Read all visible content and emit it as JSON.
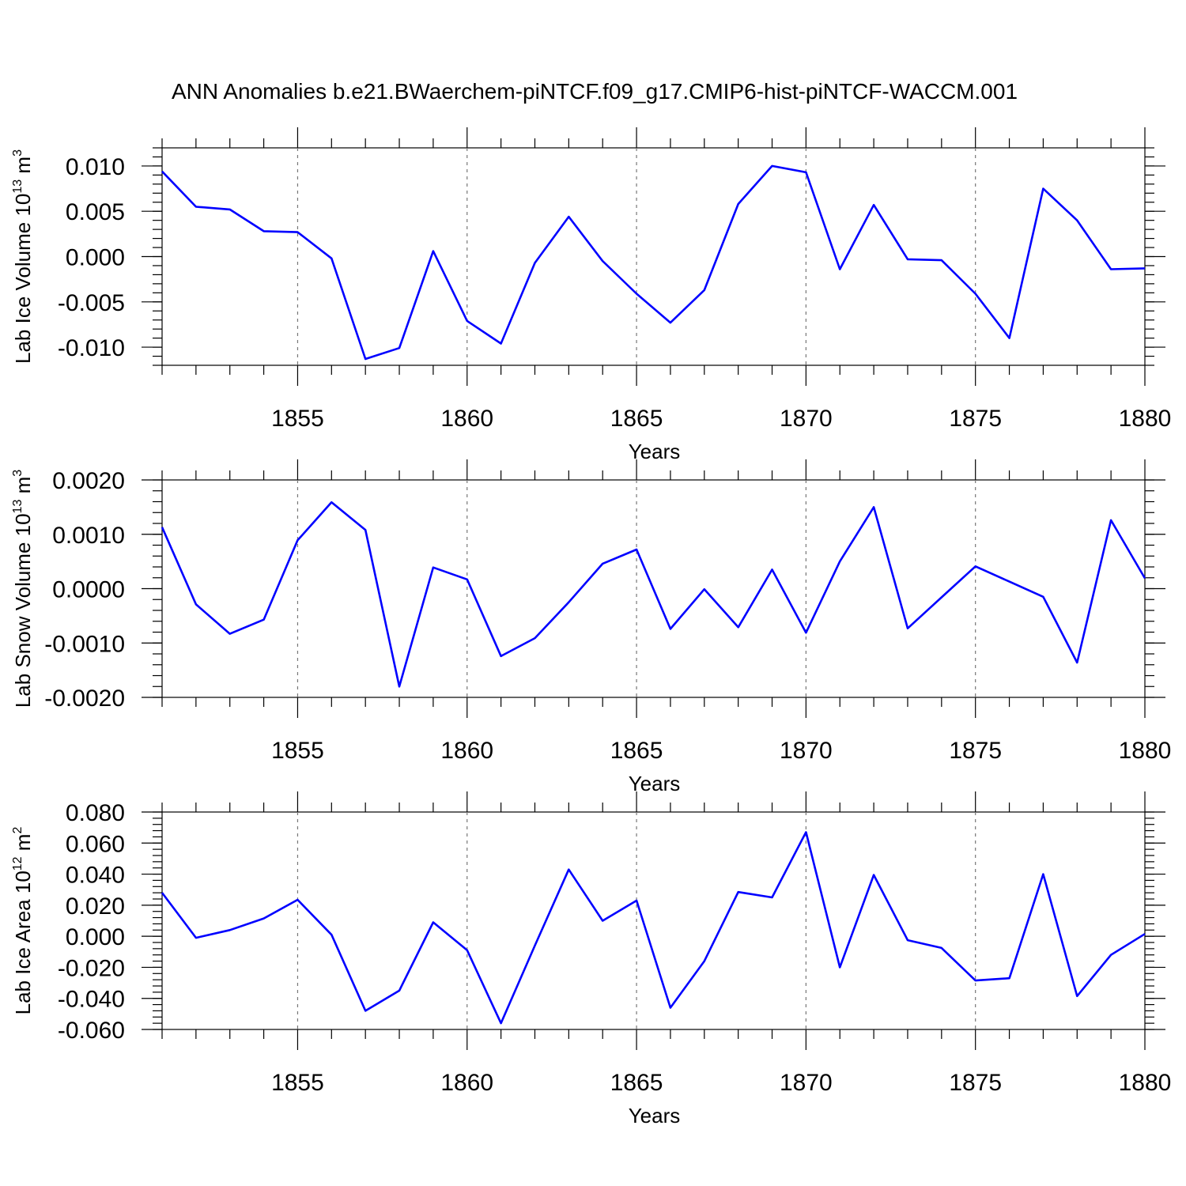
{
  "title": "ANN Anomalies b.e21.BWaerchem-piNTCF.f09_g17.CMIP6-hist-piNTCF-WACCM.001",
  "colors": {
    "line": "#0000ff",
    "grid": "#777777",
    "axis": "#000000"
  },
  "chart_data": [
    {
      "type": "line",
      "name": "ice-volume",
      "ylabel": "Lab Ice Volume 10",
      "ylabel_exp": "13",
      "ylabel_unit": " m",
      "ylabel_unit_exp": "3",
      "xlabel": "Years",
      "xlim": [
        1851,
        1880
      ],
      "ylim": [
        -0.012,
        0.012
      ],
      "x_ticks": [
        "1855",
        "1860",
        "1865",
        "1870",
        "1875",
        "1880"
      ],
      "x_tick_values": [
        1855,
        1860,
        1865,
        1870,
        1875,
        1880
      ],
      "y_ticks": [
        "0.010",
        "0.005",
        "0.000",
        "-0.005",
        "-0.010"
      ],
      "y_tick_values": [
        0.01,
        0.005,
        0.0,
        -0.005,
        -0.01
      ],
      "y_minor_step": 0.001,
      "x": [
        1851,
        1852,
        1853,
        1854,
        1855,
        1856,
        1857,
        1858,
        1859,
        1860,
        1861,
        1862,
        1863,
        1864,
        1865,
        1866,
        1867,
        1868,
        1869,
        1870,
        1871,
        1872,
        1873,
        1874,
        1875,
        1876,
        1877,
        1878,
        1879,
        1880
      ],
      "values": [
        0.0094,
        0.0055,
        0.0052,
        0.0028,
        0.0027,
        -0.0002,
        -0.0113,
        -0.0101,
        0.0006,
        -0.0071,
        -0.0096,
        -0.0007,
        0.0044,
        -0.0005,
        -0.0041,
        -0.0073,
        -0.0037,
        0.0058,
        0.01,
        0.0093,
        -0.0014,
        0.0057,
        -0.0003,
        -0.0004,
        -0.0041,
        -0.009,
        0.0075,
        0.004,
        -0.0014,
        -0.0013
      ]
    },
    {
      "type": "line",
      "name": "snow-volume",
      "ylabel": "Lab Snow Volume 10",
      "ylabel_exp": "13",
      "ylabel_unit": " m",
      "ylabel_unit_exp": "3",
      "xlabel": "Years",
      "xlim": [
        1851,
        1880
      ],
      "ylim": [
        -0.002,
        0.002
      ],
      "x_ticks": [
        "1855",
        "1860",
        "1865",
        "1870",
        "1875",
        "1880"
      ],
      "x_tick_values": [
        1855,
        1860,
        1865,
        1870,
        1875,
        1880
      ],
      "y_ticks": [
        "0.0020",
        "0.0010",
        "0.0000",
        "-0.0010",
        "-0.0020"
      ],
      "y_tick_values": [
        0.002,
        0.001,
        0.0,
        -0.001,
        -0.002
      ],
      "y_minor_step": 0.0002,
      "x": [
        1851,
        1852,
        1853,
        1854,
        1855,
        1856,
        1857,
        1858,
        1859,
        1860,
        1861,
        1862,
        1863,
        1864,
        1865,
        1866,
        1867,
        1868,
        1869,
        1870,
        1871,
        1872,
        1873,
        1874,
        1875,
        1876,
        1877,
        1878,
        1879,
        1880
      ],
      "values": [
        0.00113,
        -0.00029,
        -0.00083,
        -0.00057,
        0.00089,
        0.00159,
        0.00108,
        -0.0018,
        0.00039,
        0.00017,
        -0.00124,
        -0.00091,
        -0.00025,
        0.00046,
        0.00072,
        -0.00074,
        -1e-05,
        -0.00071,
        0.00035,
        -0.00081,
        0.0005,
        0.0015,
        -0.00073,
        -0.00016,
        0.00041,
        0.00013,
        -0.00015,
        -0.00136,
        0.00126,
        0.00019
      ]
    },
    {
      "type": "line",
      "name": "ice-area",
      "ylabel": "Lab Ice Area 10",
      "ylabel_exp": "12",
      "ylabel_unit": " m",
      "ylabel_unit_exp": "2",
      "xlabel": "Years",
      "xlim": [
        1851,
        1880
      ],
      "ylim": [
        -0.06,
        0.08
      ],
      "x_ticks": [
        "1855",
        "1860",
        "1865",
        "1870",
        "1875",
        "1880"
      ],
      "x_tick_values": [
        1855,
        1860,
        1865,
        1870,
        1875,
        1880
      ],
      "y_ticks": [
        "0.080",
        "0.060",
        "0.040",
        "0.020",
        "0.000",
        "-0.020",
        "-0.040",
        "-0.060"
      ],
      "y_tick_values": [
        0.08,
        0.06,
        0.04,
        0.02,
        0.0,
        -0.02,
        -0.04,
        -0.06
      ],
      "y_minor_step": 0.004,
      "x": [
        1851,
        1852,
        1853,
        1854,
        1855,
        1856,
        1857,
        1858,
        1859,
        1860,
        1861,
        1862,
        1863,
        1864,
        1865,
        1866,
        1867,
        1868,
        1869,
        1870,
        1871,
        1872,
        1873,
        1874,
        1875,
        1876,
        1877,
        1878,
        1879,
        1880
      ],
      "values": [
        0.028,
        -0.001,
        0.004,
        0.0115,
        0.0235,
        0.001,
        -0.048,
        -0.035,
        0.009,
        -0.009,
        -0.056,
        -0.006,
        0.043,
        0.01,
        0.023,
        -0.046,
        -0.016,
        0.0285,
        0.025,
        0.067,
        -0.02,
        0.0395,
        -0.0025,
        -0.0075,
        -0.0285,
        -0.027,
        0.04,
        -0.0385,
        -0.012,
        0.0015
      ]
    }
  ]
}
